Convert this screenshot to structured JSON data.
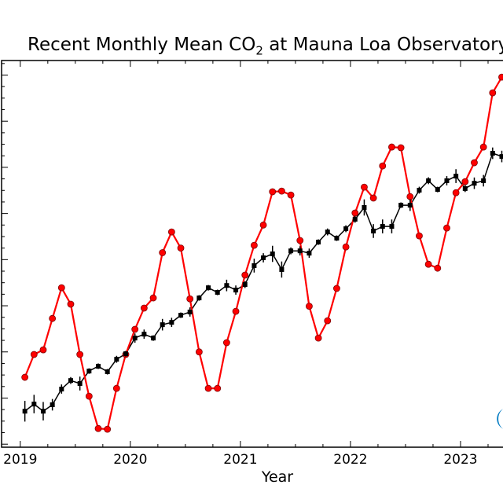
{
  "chart_data": {
    "type": "line",
    "title": "Recent Monthly Mean CO",
    "title_subscript": "2",
    "title_suffix": " at Mauna Loa Observatory",
    "xlabel": "Year",
    "ylabel": "",
    "xlim": [
      2018.83,
      2023.6
    ],
    "ylim": [
      407.87,
      424.63
    ],
    "x_ticks": [
      2019,
      2020,
      2021,
      2022,
      2023
    ],
    "x_tick_labels": [
      "2019",
      "2020",
      "2021",
      "2022",
      "2023"
    ],
    "grid": false,
    "start": "2019-01",
    "series": [
      {
        "color": "#ff0000",
        "marker": "circle",
        "values": [
          410.9,
          411.89,
          412.09,
          413.45,
          414.78,
          414.07,
          411.89,
          410.08,
          408.68,
          408.65,
          410.42,
          411.89,
          412.98,
          413.9,
          414.34,
          416.3,
          417.2,
          416.5,
          414.3,
          412.0,
          410.42,
          410.42,
          412.4,
          413.76,
          415.33,
          416.62,
          417.5,
          418.94,
          418.97,
          418.8,
          416.83,
          413.98,
          412.6,
          413.35,
          414.75,
          416.55,
          418.02,
          419.14,
          418.67,
          420.06,
          420.88,
          420.85,
          418.73,
          417.03,
          415.8,
          415.63,
          417.37,
          418.9,
          419.38,
          420.2,
          420.88,
          423.23,
          423.91
        ]
      },
      {
        "color": "#000000",
        "marker": "square",
        "values": [
          409.43,
          409.74,
          409.43,
          409.71,
          410.39,
          410.76,
          410.63,
          411.17,
          411.38,
          411.14,
          411.68,
          411.92,
          412.6,
          412.77,
          412.6,
          413.18,
          413.28,
          413.59,
          413.73,
          414.34,
          414.78,
          414.58,
          414.88,
          414.68,
          414.92,
          415.74,
          416.08,
          416.25,
          415.57,
          416.38,
          416.38,
          416.28,
          416.76,
          417.2,
          416.93,
          417.34,
          417.75,
          418.26,
          417.24,
          417.44,
          417.44,
          418.36,
          418.36,
          419.01,
          419.42,
          419.04,
          419.42,
          419.62,
          419.08,
          419.31,
          419.42,
          420.61,
          420.47
        ],
        "uncertainty": [
          0.45,
          0.4,
          0.4,
          0.25,
          0.2,
          0.15,
          0.3,
          0.12,
          0.12,
          0.12,
          0.15,
          0.12,
          0.2,
          0.2,
          0.12,
          0.25,
          0.2,
          0.12,
          0.2,
          0.12,
          0.12,
          0.12,
          0.25,
          0.2,
          0.15,
          0.3,
          0.2,
          0.35,
          0.35,
          0.15,
          0.2,
          0.2,
          0.12,
          0.15,
          0.12,
          0.15,
          0.15,
          0.35,
          0.3,
          0.3,
          0.3,
          0.12,
          0.25,
          0.15,
          0.15,
          0.12,
          0.2,
          0.3,
          0.15,
          0.25,
          0.25,
          0.25,
          0.25
        ]
      }
    ]
  },
  "logo": {
    "color": "#0a7fc4"
  }
}
